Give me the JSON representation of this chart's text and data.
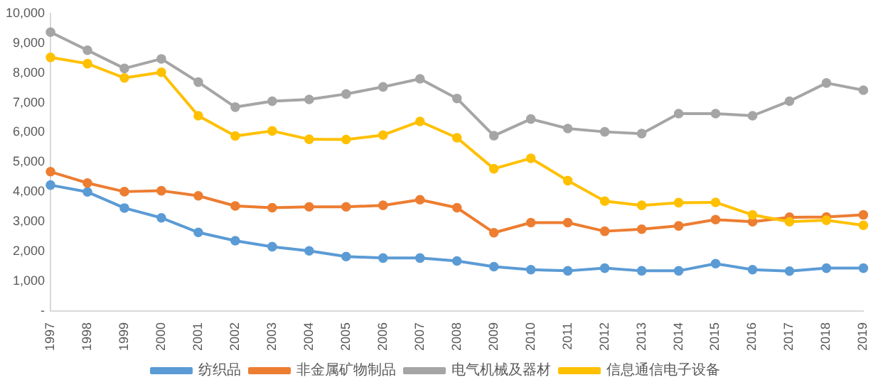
{
  "chart_data": {
    "type": "line",
    "categories": [
      "1997",
      "1998",
      "1999",
      "2000",
      "2001",
      "2002",
      "2003",
      "2004",
      "2005",
      "2006",
      "2007",
      "2008",
      "2009",
      "2010",
      "2011",
      "2012",
      "2013",
      "2014",
      "2015",
      "2016",
      "2017",
      "2018",
      "2019"
    ],
    "series": [
      {
        "name": "纺织品",
        "color": "#5b9bd5",
        "values": [
          4230,
          4000,
          3460,
          3130,
          2640,
          2360,
          2160,
          2020,
          1830,
          1780,
          1780,
          1680,
          1490,
          1390,
          1350,
          1440,
          1350,
          1350,
          1590,
          1390,
          1340,
          1440,
          1440
        ]
      },
      {
        "name": "非金属矿物制品",
        "color": "#ed7d31",
        "values": [
          4680,
          4300,
          4010,
          4040,
          3870,
          3530,
          3470,
          3500,
          3500,
          3550,
          3740,
          3470,
          2630,
          2970,
          2970,
          2680,
          2750,
          2860,
          3070,
          3000,
          3150,
          3160,
          3230
        ]
      },
      {
        "name": "电气机械及器材",
        "color": "#a5a5a5",
        "values": [
          9370,
          8760,
          8150,
          8470,
          7690,
          6850,
          7050,
          7110,
          7290,
          7530,
          7800,
          7140,
          5890,
          6450,
          6130,
          6020,
          5960,
          6630,
          6630,
          6560,
          7050,
          7660,
          7420
        ]
      },
      {
        "name": "信息通信电子设备",
        "color": "#ffc000",
        "values": [
          8520,
          8310,
          7830,
          8020,
          6560,
          5880,
          6050,
          5770,
          5760,
          5910,
          6370,
          5820,
          4780,
          5130,
          4380,
          3690,
          3550,
          3640,
          3650,
          3230,
          3000,
          3050,
          2880
        ]
      }
    ],
    "ylim": [
      0,
      10000
    ],
    "yticks": [
      {
        "value": 0,
        "label": "-"
      },
      {
        "value": 1000,
        "label": "1,000"
      },
      {
        "value": 2000,
        "label": "2,000"
      },
      {
        "value": 3000,
        "label": "3,000"
      },
      {
        "value": 4000,
        "label": "4,000"
      },
      {
        "value": 5000,
        "label": "5,000"
      },
      {
        "value": 6000,
        "label": "6,000"
      },
      {
        "value": 7000,
        "label": "7,000"
      },
      {
        "value": 8000,
        "label": "8,000"
      },
      {
        "value": 9000,
        "label": "9,000"
      },
      {
        "value": 10000,
        "label": "10,000"
      }
    ],
    "grid": false,
    "legend": "bottom",
    "marker": "circle",
    "line_style": "solid"
  }
}
